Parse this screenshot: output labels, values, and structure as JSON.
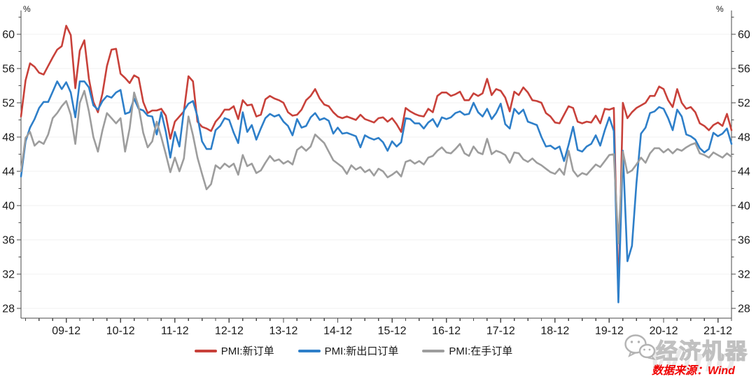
{
  "chart_data": {
    "type": "line",
    "title": "",
    "unit_label": "%",
    "x_tick_labels": [
      "09-12",
      "10-12",
      "11-12",
      "12-12",
      "13-12",
      "14-12",
      "15-12",
      "16-12",
      "17-12",
      "18-12",
      "19-12",
      "20-12",
      "21-12"
    ],
    "y_ticks": [
      28,
      32,
      36,
      40,
      44,
      48,
      52,
      56,
      60
    ],
    "ylim": [
      26.9,
      62.8
    ],
    "x_frequency": "monthly",
    "x_minor_ticks": "quarterly",
    "grid": "horizontal-light",
    "legend_position": "bottom-center",
    "axis_color": "#4a4a4a",
    "grid_color": "#f0f0f0",
    "series": [
      {
        "name": "PMI:新订单",
        "color": "#C8413A",
        "values": [
          50.4,
          54.6,
          56.6,
          56.2,
          55.5,
          55.3,
          56.3,
          57.3,
          58.2,
          58.6,
          61.0,
          59.9,
          53.7,
          58.1,
          59.3,
          54.8,
          52.1,
          50.9,
          53.1,
          56.3,
          58.2,
          58.3,
          55.4,
          54.9,
          54.3,
          55.2,
          54.9,
          52.1,
          50.8,
          51.1,
          51.1,
          51.3,
          50.5,
          47.8,
          49.8,
          50.4,
          51.0,
          55.1,
          54.5,
          49.8,
          49.2,
          49.0,
          48.7,
          49.8,
          50.4,
          51.2,
          51.2,
          51.6,
          50.1,
          52.3,
          51.7,
          51.8,
          50.4,
          50.6,
          52.4,
          52.8,
          52.5,
          52.3,
          52.0,
          50.9,
          50.5,
          50.6,
          51.2,
          52.3,
          52.8,
          53.6,
          52.5,
          51.8,
          51.6,
          50.9,
          50.4,
          50.2,
          50.4,
          50.2,
          50.0,
          50.6,
          50.1,
          49.9,
          49.7,
          50.2,
          50.3,
          49.8,
          50.2,
          49.5,
          48.6,
          51.4,
          51.0,
          50.7,
          50.5,
          50.4,
          51.3,
          50.9,
          52.8,
          53.2,
          53.2,
          52.8,
          53.0,
          53.3,
          52.3,
          52.3,
          53.1,
          52.8,
          53.1,
          54.8,
          52.9,
          53.6,
          53.4,
          52.6,
          51.0,
          53.3,
          52.9,
          53.8,
          53.2,
          52.3,
          52.2,
          52.0,
          50.8,
          50.4,
          49.7,
          49.6,
          50.6,
          51.6,
          51.4,
          49.8,
          49.6,
          49.8,
          49.7,
          50.5,
          49.6,
          51.3,
          51.2,
          51.4,
          29.3,
          52.0,
          50.2,
          50.9,
          51.4,
          51.7,
          52.0,
          52.8,
          52.8,
          53.9,
          53.6,
          52.3,
          51.5,
          53.6,
          52.0,
          51.3,
          51.5,
          50.9,
          49.6,
          49.3,
          48.8,
          49.4,
          49.7,
          49.3,
          50.7,
          48.8
        ]
      },
      {
        "name": "PMI:新出口订单",
        "color": "#2E7FC9",
        "values": [
          43.4,
          47.5,
          49.1,
          50.1,
          51.4,
          52.1,
          52.1,
          53.3,
          54.5,
          53.6,
          54.4,
          53.2,
          50.3,
          54.5,
          54.5,
          53.8,
          51.7,
          51.2,
          52.2,
          52.8,
          52.6,
          53.2,
          53.5,
          50.7,
          50.9,
          52.5,
          51.3,
          51.1,
          50.5,
          50.4,
          48.3,
          50.9,
          48.6,
          45.6,
          48.6,
          46.9,
          51.1,
          51.9,
          52.2,
          50.4,
          47.5,
          46.6,
          46.6,
          48.8,
          49.3,
          50.2,
          50.0,
          48.5,
          47.3,
          50.9,
          48.6,
          49.4,
          47.7,
          49.0,
          50.2,
          50.7,
          50.4,
          50.6,
          49.8,
          49.3,
          48.2,
          50.1,
          49.1,
          49.3,
          50.3,
          50.8,
          50.0,
          50.2,
          49.9,
          48.4,
          49.1,
          48.4,
          48.5,
          48.3,
          48.1,
          46.8,
          48.2,
          47.9,
          47.7,
          47.9,
          47.4,
          46.4,
          47.5,
          46.9,
          47.4,
          50.2,
          50.1,
          49.6,
          49.6,
          49.0,
          49.7,
          50.1,
          49.2,
          50.3,
          50.1,
          50.3,
          50.8,
          51.0,
          50.6,
          50.7,
          52.0,
          50.9,
          50.4,
          51.3,
          50.1,
          50.8,
          51.9,
          49.5,
          49.0,
          51.3,
          50.7,
          51.2,
          49.8,
          49.6,
          49.4,
          48.0,
          46.9,
          47.0,
          46.6,
          46.9,
          45.2,
          47.1,
          49.2,
          46.5,
          46.3,
          46.9,
          47.2,
          48.2,
          47.0,
          48.8,
          50.3,
          48.7,
          28.7,
          46.4,
          33.5,
          35.3,
          42.6,
          48.4,
          49.1,
          50.8,
          51.0,
          51.5,
          51.3,
          50.2,
          48.8,
          51.2,
          50.4,
          48.3,
          48.1,
          47.7,
          46.7,
          46.2,
          46.6,
          48.5,
          48.1,
          48.4,
          49.0,
          47.2
        ]
      },
      {
        "name": "PMI:在手订单",
        "color": "#9D9D9D",
        "values": [
          44.0,
          47.9,
          48.6,
          47.0,
          47.5,
          47.2,
          48.3,
          50.2,
          50.8,
          51.6,
          52.2,
          50.6,
          47.2,
          52.0,
          53.4,
          51.0,
          48.0,
          46.3,
          48.8,
          50.8,
          50.2,
          49.6,
          50.2,
          46.3,
          49.0,
          53.2,
          51.5,
          48.5,
          46.8,
          47.5,
          49.8,
          48.0,
          46.0,
          43.9,
          45.6,
          44.0,
          45.5,
          50.4,
          48.2,
          45.6,
          43.7,
          41.9,
          42.5,
          44.7,
          44.3,
          44.9,
          44.5,
          44.9,
          43.6,
          45.9,
          44.6,
          44.9,
          43.8,
          44.1,
          45.0,
          45.8,
          45.2,
          45.4,
          44.9,
          45.2,
          44.8,
          46.5,
          46.9,
          46.4,
          46.9,
          48.3,
          47.8,
          47.3,
          46.3,
          45.3,
          44.9,
          44.5,
          43.7,
          44.7,
          44.2,
          44.5,
          43.9,
          44.2,
          43.5,
          44.3,
          44.0,
          43.3,
          43.6,
          44.0,
          43.4,
          45.1,
          45.3,
          44.9,
          45.2,
          44.8,
          45.6,
          45.8,
          46.4,
          46.8,
          46.2,
          46.1,
          46.6,
          47.2,
          46.1,
          45.8,
          46.9,
          46.2,
          46.0,
          47.8,
          46.0,
          46.4,
          46.2,
          45.9,
          45.0,
          46.2,
          46.1,
          45.4,
          45.1,
          45.5,
          45.0,
          44.7,
          44.3,
          43.9,
          43.7,
          44.3,
          43.6,
          46.4,
          44.1,
          43.4,
          43.8,
          43.6,
          44.2,
          44.8,
          44.5,
          45.2,
          45.9,
          46.0,
          35.6,
          46.3,
          43.8,
          44.1,
          44.8,
          45.6,
          45.0,
          46.1,
          46.7,
          46.7,
          46.2,
          46.6,
          46.1,
          46.6,
          46.4,
          46.8,
          47.1,
          47.3,
          46.1,
          45.9,
          45.6,
          46.2,
          45.9,
          45.6,
          46.1,
          45.7
        ]
      }
    ]
  },
  "legend": {
    "items": [
      "PMI:新订单",
      "PMI:新出口订单",
      "PMI:在手订单"
    ]
  },
  "watermark": {
    "brand": "经济机器",
    "background_text": "Wind"
  },
  "source_note": "数据来源：Wind"
}
